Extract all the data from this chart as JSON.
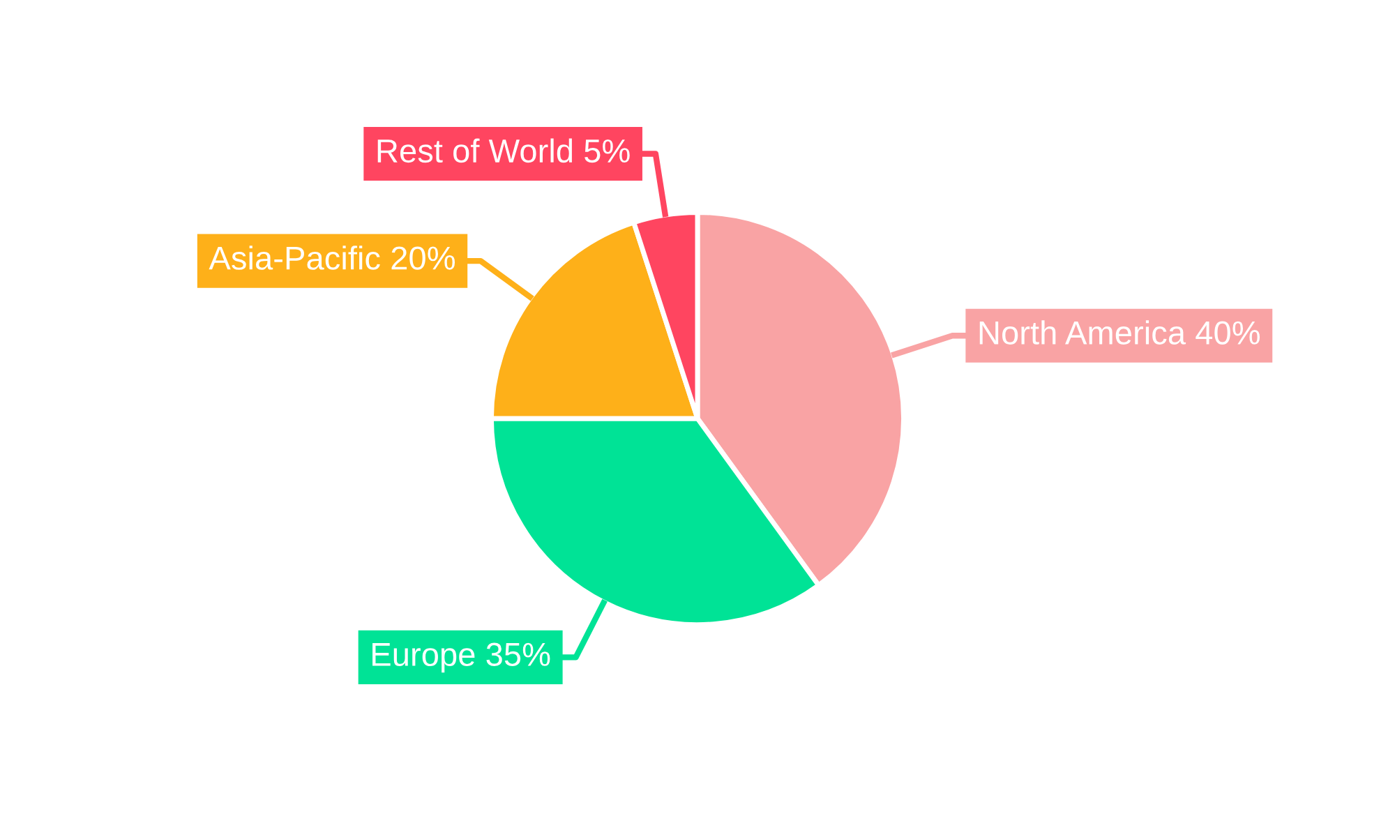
{
  "chart_data": {
    "type": "pie",
    "categories": [
      "North America",
      "Europe",
      "Asia-Pacific",
      "Rest of World"
    ],
    "values": [
      40,
      35,
      20,
      5
    ],
    "value_labels": [
      "40%",
      "35%",
      "20%",
      "5%"
    ],
    "colors": [
      "#f9a3a4",
      "#00e396",
      "#feb019",
      "#ff4560"
    ],
    "legend": false
  }
}
